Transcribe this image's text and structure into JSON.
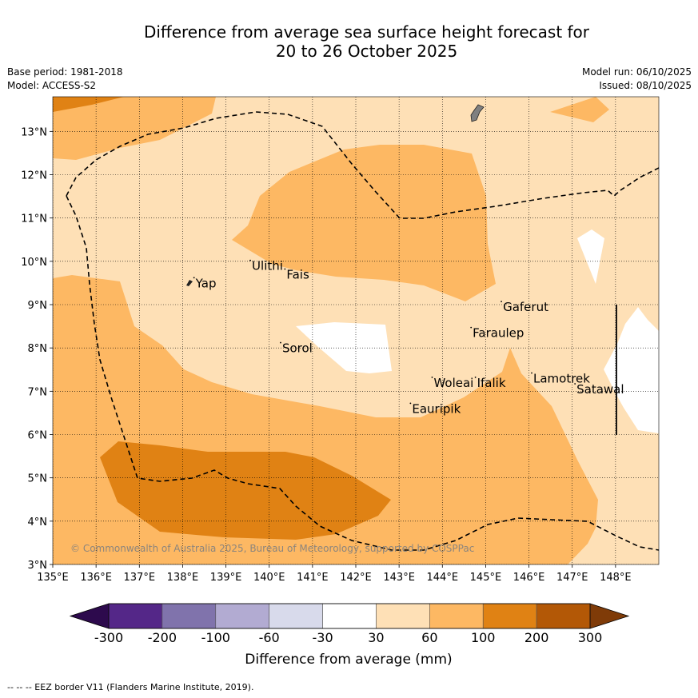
{
  "title": {
    "line1": "Difference from average sea surface height forecast for",
    "line2": "20 to 26 October 2025"
  },
  "info": {
    "base_period": "Base period: 1981-2018",
    "model": "Model: ACCESS-S2",
    "model_run": "Model run: 06/10/2025",
    "issued": "Issued: 08/10/2025"
  },
  "axes": {
    "x_ticks": [
      "135°E",
      "136°E",
      "137°E",
      "138°E",
      "139°E",
      "140°E",
      "141°E",
      "142°E",
      "143°E",
      "144°E",
      "145°E",
      "146°E",
      "147°E",
      "148°E"
    ],
    "y_ticks": [
      "3°N",
      "4°N",
      "5°N",
      "6°N",
      "7°N",
      "8°N",
      "9°N",
      "10°N",
      "11°N",
      "12°N",
      "13°N"
    ],
    "lon_range": [
      135,
      149
    ],
    "lat_range": [
      3,
      13.8
    ]
  },
  "places": [
    {
      "name": "Yap",
      "lon": 138.3,
      "lat": 9.4
    },
    {
      "name": "Ulithi",
      "lon": 139.6,
      "lat": 9.8
    },
    {
      "name": "Fais",
      "lon": 140.4,
      "lat": 9.6
    },
    {
      "name": "Sorol",
      "lon": 140.3,
      "lat": 7.9
    },
    {
      "name": "Gaferut",
      "lon": 145.4,
      "lat": 8.85
    },
    {
      "name": "Faraulep",
      "lon": 144.7,
      "lat": 8.25
    },
    {
      "name": "Woleai",
      "lon": 143.8,
      "lat": 7.1
    },
    {
      "name": "Ifalik",
      "lon": 144.8,
      "lat": 7.1
    },
    {
      "name": "Lamotrek",
      "lon": 146.1,
      "lat": 7.2
    },
    {
      "name": "Satawal",
      "lon": 147.1,
      "lat": 6.95
    },
    {
      "name": "Eauripik",
      "lon": 143.3,
      "lat": 6.5
    }
  ],
  "copyright": "© Commonwealth of Australia 2025, Bureau of Meteorology, supported by COSPPac",
  "colorbar": {
    "label": "Difference from average (mm)",
    "ticks": [
      "-300",
      "-200",
      "-100",
      "-60",
      "-30",
      "30",
      "60",
      "100",
      "200",
      "300"
    ],
    "under_color": "#2d0a4d",
    "over_color": "#7f3b08",
    "bin_colors": [
      "#542788",
      "#8073ac",
      "#b2abd2",
      "#d8daeb",
      "#ffffff",
      "#fee0b6",
      "#fdb863",
      "#e08214",
      "#b35806"
    ]
  },
  "footer": "-- -- -- EEZ border V11 (Flanders Marine Institute, 2019)."
}
